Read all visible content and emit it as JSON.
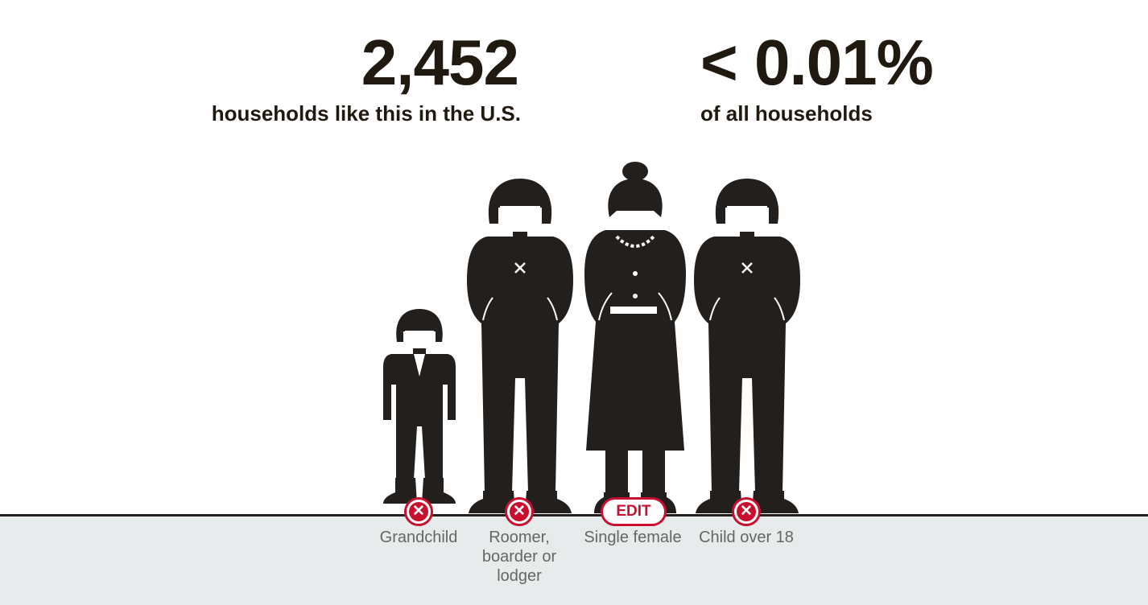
{
  "stats": {
    "households_count": "2,452",
    "households_label": "households like this in the U.S.",
    "percent": "< 0.01%",
    "percent_label": "of all households"
  },
  "members": [
    {
      "label": "Grandchild",
      "action": "remove",
      "icon": "close-icon"
    },
    {
      "label": "Roomer, boarder or lodger",
      "action": "remove",
      "icon": "close-icon"
    },
    {
      "label": "Single female",
      "action": "edit",
      "action_label": "EDIT"
    },
    {
      "label": "Child over 18",
      "action": "remove",
      "icon": "close-icon"
    }
  ],
  "colors": {
    "silhouette": "#231f1c",
    "accent": "#c8102e",
    "ground": "#e7ebec",
    "label_text": "#666666",
    "stat_text": "#20190f"
  }
}
